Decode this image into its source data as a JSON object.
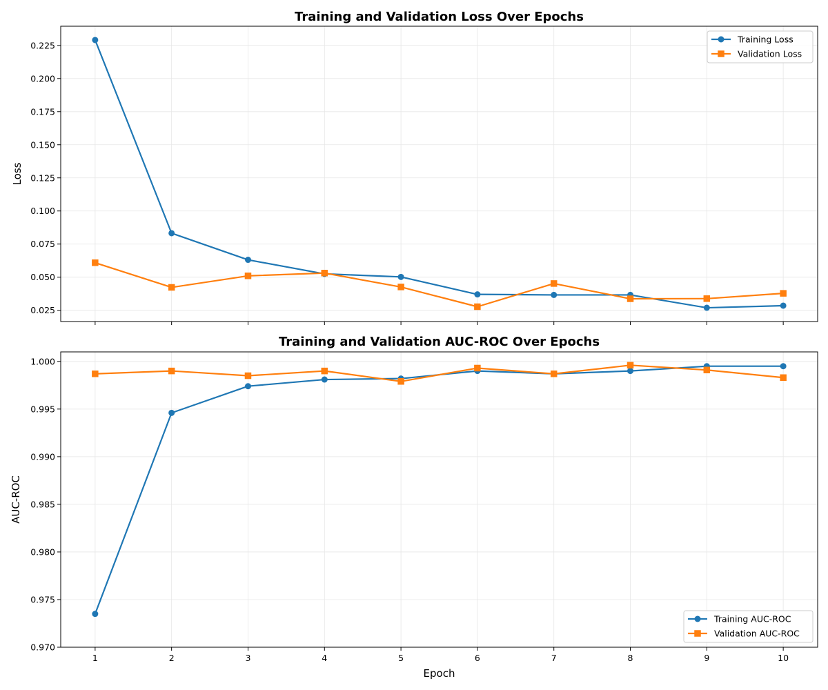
{
  "chart_data": [
    {
      "type": "line",
      "title": "Training and Validation Loss Over Epochs",
      "xlabel": "",
      "ylabel": "Loss",
      "x": [
        1,
        2,
        3,
        4,
        5,
        6,
        7,
        8,
        9,
        10
      ],
      "xlim": [
        0.55,
        10.45
      ],
      "ylim": [
        0.0165,
        0.2395
      ],
      "yticks": [
        0.025,
        0.05,
        0.075,
        0.1,
        0.125,
        0.15,
        0.175,
        0.2,
        0.225
      ],
      "ytick_labels": [
        "0.025",
        "0.050",
        "0.075",
        "0.100",
        "0.125",
        "0.150",
        "0.175",
        "0.200",
        "0.225"
      ],
      "show_xtick_labels": false,
      "grid": true,
      "legend_position": "upper right",
      "series": [
        {
          "name": "Training Loss",
          "color": "#1f77b4",
          "marker": "circle",
          "values": [
            0.2291,
            0.0832,
            0.0631,
            0.0525,
            0.0502,
            0.037,
            0.0366,
            0.0366,
            0.0269,
            0.0285
          ]
        },
        {
          "name": "Validation Loss",
          "color": "#ff7f0e",
          "marker": "square",
          "values": [
            0.0609,
            0.0423,
            0.051,
            0.0531,
            0.0426,
            0.0277,
            0.0452,
            0.0337,
            0.0338,
            0.0378
          ]
        }
      ]
    },
    {
      "type": "line",
      "title": "Training and Validation AUC-ROC Over Epochs",
      "xlabel": "Epoch",
      "ylabel": "AUC-ROC",
      "x": [
        1,
        2,
        3,
        4,
        5,
        6,
        7,
        8,
        9,
        10
      ],
      "xlim": [
        0.55,
        10.45
      ],
      "ylim": [
        0.97,
        1.001
      ],
      "yticks": [
        0.97,
        0.975,
        0.98,
        0.985,
        0.99,
        0.995,
        1.0
      ],
      "ytick_labels": [
        "0.970",
        "0.975",
        "0.980",
        "0.985",
        "0.990",
        "0.995",
        "1.000"
      ],
      "xtick_labels": [
        "1",
        "2",
        "3",
        "4",
        "5",
        "6",
        "7",
        "8",
        "9",
        "10"
      ],
      "show_xtick_labels": true,
      "grid": true,
      "legend_position": "lower right",
      "series": [
        {
          "name": "Training AUC-ROC",
          "color": "#1f77b4",
          "marker": "circle",
          "values": [
            0.9735,
            0.9946,
            0.9974,
            0.9981,
            0.9982,
            0.999,
            0.9987,
            0.999,
            0.9995,
            0.9995
          ]
        },
        {
          "name": "Validation AUC-ROC",
          "color": "#ff7f0e",
          "marker": "square",
          "values": [
            0.9987,
            0.999,
            0.9985,
            0.999,
            0.9979,
            0.9993,
            0.9987,
            0.9996,
            0.9991,
            0.9983
          ]
        }
      ]
    }
  ]
}
